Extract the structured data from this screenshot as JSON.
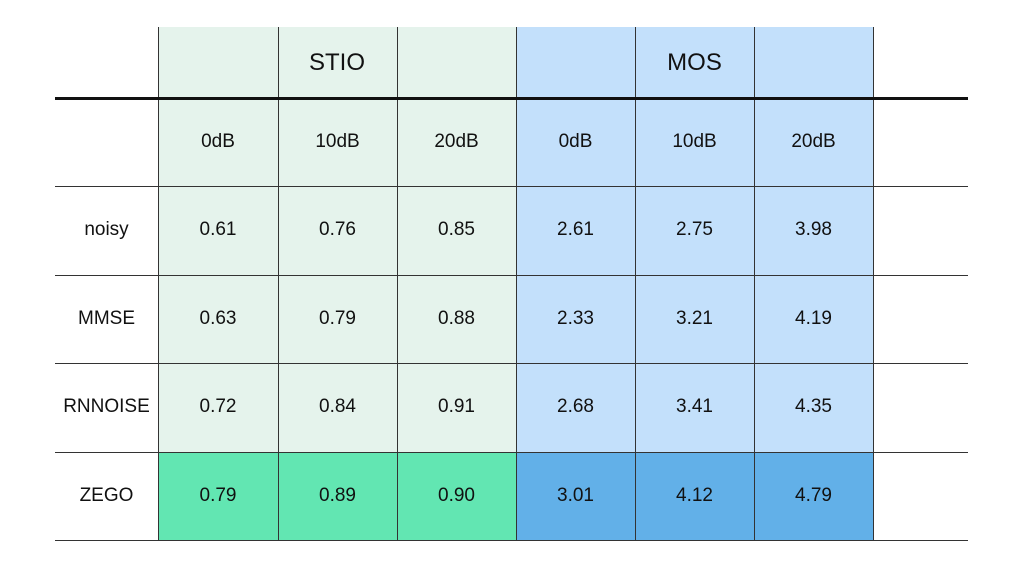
{
  "chart_data": {
    "type": "table",
    "column_groups": [
      {
        "name": "STIO",
        "columns": [
          "0dB",
          "10dB",
          "20dB"
        ],
        "color": "#e5f3ec",
        "highlight_color": "#62e6b2"
      },
      {
        "name": "MOS",
        "columns": [
          "0dB",
          "10dB",
          "20dB"
        ],
        "color": "#c3e0fb",
        "highlight_color": "#62b0e8"
      }
    ],
    "rows": [
      {
        "label": "noisy",
        "values": [
          "0.61",
          "0.76",
          "0.85",
          "2.61",
          "2.75",
          "3.98"
        ],
        "highlight": false
      },
      {
        "label": "MMSE",
        "values": [
          "0.63",
          "0.79",
          "0.88",
          "2.33",
          "3.21",
          "4.19"
        ],
        "highlight": false
      },
      {
        "label": "RNNOISE",
        "values": [
          "0.72",
          "0.84",
          "0.91",
          "2.68",
          "3.41",
          "4.35"
        ],
        "highlight": false
      },
      {
        "label": "ZEGO",
        "values": [
          "0.79",
          "0.89",
          "0.90",
          "3.01",
          "4.12",
          "4.79"
        ],
        "highlight": true
      }
    ]
  }
}
